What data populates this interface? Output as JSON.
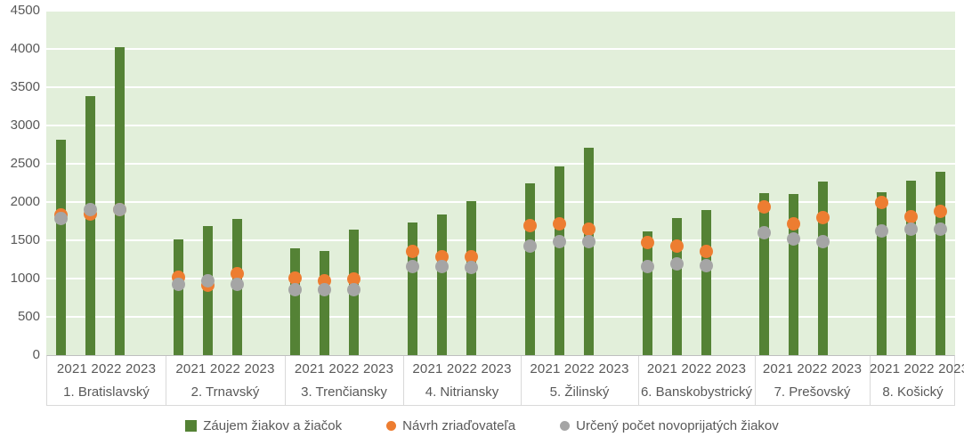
{
  "chart_data": {
    "type": "bar",
    "title": "",
    "ylim": [
      0,
      4500
    ],
    "ytick_step": 500,
    "yticks": [
      "0",
      "500",
      "1000",
      "1500",
      "2000",
      "2500",
      "3000",
      "3500",
      "4000",
      "4500"
    ],
    "grid": true,
    "plot_bg": "#e2efda",
    "legend_position": "bottom",
    "years": [
      "2021",
      "2022",
      "2023"
    ],
    "categories": [
      "1. Bratislavský",
      "2. Trnavský",
      "3. Trenčiansky",
      "4. Nitriansky",
      "5. Žilinský",
      "6. Banskobystrický",
      "7. Prešovský",
      "8. Košický"
    ],
    "series": [
      {
        "name": "Záujem žiakov a žiačok",
        "style": "bar",
        "color": "#548235",
        "values": [
          [
            2810,
            3380,
            4020
          ],
          [
            1510,
            1690,
            1780
          ],
          [
            1400,
            1360,
            1640
          ],
          [
            1730,
            1840,
            2010
          ],
          [
            2240,
            2470,
            2710
          ],
          [
            1620,
            1790,
            1890
          ],
          [
            2120,
            2110,
            2270
          ],
          [
            2130,
            2280,
            2400
          ]
        ]
      },
      {
        "name": "Návrh zriaďovateľa",
        "style": "point",
        "color": "#ed7d31",
        "values": [
          [
            1830,
            1840,
            1900
          ],
          [
            1020,
            910,
            1060
          ],
          [
            1010,
            970,
            1000
          ],
          [
            1350,
            1290,
            1280
          ],
          [
            1690,
            1710,
            1650
          ],
          [
            1470,
            1420,
            1350
          ],
          [
            1940,
            1710,
            1800
          ],
          [
            2000,
            1810,
            1880
          ]
        ]
      },
      {
        "name": "Určený počet novoprijatých žiakov",
        "style": "point",
        "color": "#a5a5a5",
        "values": [
          [
            1790,
            1900,
            1900
          ],
          [
            930,
            970,
            920
          ],
          [
            850,
            850,
            850
          ],
          [
            1160,
            1160,
            1140
          ],
          [
            1420,
            1480,
            1480
          ],
          [
            1160,
            1190,
            1170
          ],
          [
            1600,
            1520,
            1480
          ],
          [
            1620,
            1640,
            1640
          ]
        ]
      }
    ]
  }
}
